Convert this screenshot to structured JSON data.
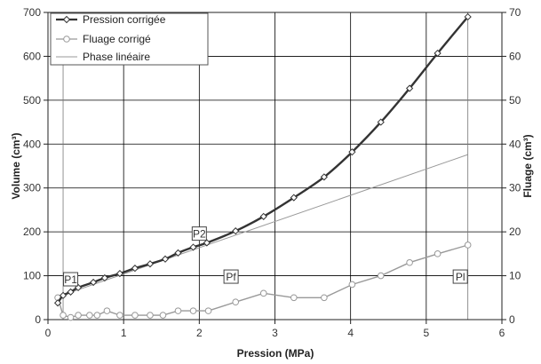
{
  "chart_data": {
    "type": "line",
    "xlabel": "Pression (MPa)",
    "ylabel": "Volume (cm³)",
    "y2label": "Fluage (cm³)",
    "xlim": [
      0,
      6
    ],
    "ylim": [
      0,
      700
    ],
    "y2lim": [
      0,
      70
    ],
    "x_ticks": [
      "0",
      "1",
      "2",
      "3",
      "4",
      "5",
      "6"
    ],
    "y_ticks": [
      "0",
      "100",
      "200",
      "300",
      "400",
      "500",
      "600",
      "700"
    ],
    "y2_ticks": [
      "0",
      "10",
      "20",
      "30",
      "40",
      "50",
      "60",
      "70"
    ],
    "grid": true,
    "legend_position": "top-left",
    "colors": {
      "pression": "#333333",
      "fluage": "#999999",
      "phase": "#999999",
      "grid": "#000000",
      "marker_fill": "#ffffff"
    },
    "series": [
      {
        "name": "Pression corrigée",
        "axis": "left",
        "marker": "diamond",
        "x": [
          0.13,
          0.2,
          0.3,
          0.4,
          0.6,
          0.75,
          0.95,
          1.15,
          1.35,
          1.55,
          1.72,
          1.92,
          2.1,
          2.48,
          2.85,
          3.25,
          3.65,
          4.02,
          4.4,
          4.78,
          5.15,
          5.55
        ],
        "y": [
          38,
          55,
          63,
          73,
          85,
          95,
          105,
          117,
          127,
          138,
          152,
          165,
          175,
          202,
          235,
          278,
          325,
          382,
          450,
          527,
          607,
          690
        ]
      },
      {
        "name": "Fluage corrigé",
        "axis": "right",
        "marker": "circle",
        "x": [
          0.13,
          0.2,
          0.3,
          0.4,
          0.55,
          0.65,
          0.78,
          0.95,
          1.15,
          1.35,
          1.52,
          1.72,
          1.92,
          2.12,
          2.48,
          2.85,
          3.25,
          3.65,
          4.02,
          4.4,
          4.78,
          5.15,
          5.55
        ],
        "y": [
          5,
          1,
          0.5,
          1,
          1,
          1,
          2,
          1,
          1,
          1,
          1,
          2,
          2,
          2,
          4,
          6,
          5,
          5,
          8,
          10,
          13,
          15,
          17
        ]
      },
      {
        "name": "Phase linéaire",
        "axis": "left",
        "marker": "none",
        "x": [
          0.13,
          5.55
        ],
        "y": [
          52,
          376
        ]
      }
    ],
    "annotations": [
      {
        "label": "P1",
        "x": 0.3,
        "y": 92
      },
      {
        "label": "P2",
        "x": 2.0,
        "y": 196
      },
      {
        "label": "Pf",
        "x": 2.42,
        "y": 98
      },
      {
        "label": "Pl",
        "x": 5.45,
        "y": 98
      }
    ],
    "vlines": [
      0.2,
      5.55
    ]
  }
}
